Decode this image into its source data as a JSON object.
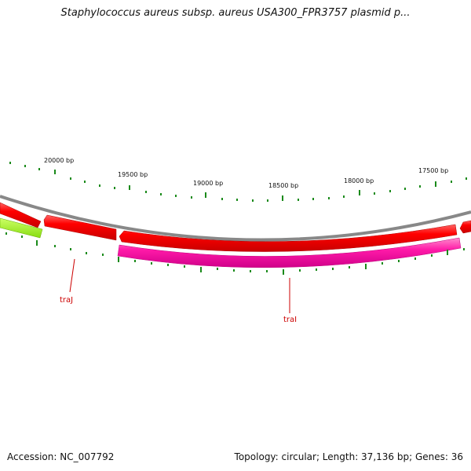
{
  "title": "Staphylococcus aureus subsp. aureus USA300_FPR3757 plasmid p...",
  "footer": {
    "accession": "Accession: NC_007792",
    "summary": "Topology: circular; Length: 37,136 bp; Genes: 36"
  },
  "scale_labels": [
    "20000 bp",
    "19500 bp",
    "19000 bp",
    "18500 bp",
    "18000 bp",
    "17500 bp"
  ],
  "gene_labels": [
    "traJ",
    "traI"
  ],
  "colors": {
    "backbone": "#888888",
    "forward_gene": "#ff0000",
    "reverse_gene": "#ff1aa8",
    "other_gene": "#99ee22",
    "ticks": "#1a8a1a",
    "gene_label": "#cc0000"
  }
}
